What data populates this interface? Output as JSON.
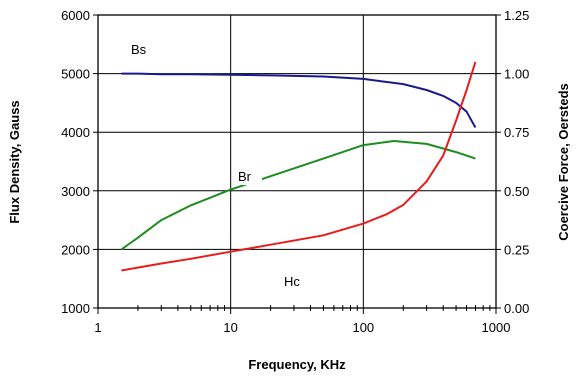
{
  "chart_data": {
    "type": "line",
    "xlabel": "Frequency, KHz",
    "ylabel": "Flux Density, Gauss",
    "y2label": "Coercive Force, Oersteds",
    "x_scale": "log",
    "xlim": [
      1,
      1000
    ],
    "ylim": [
      1000,
      6000
    ],
    "y2lim": [
      0,
      1.25
    ],
    "grid": true,
    "x_ticks": [
      1,
      10,
      100,
      1000
    ],
    "x_tick_labels": [
      "1",
      "10",
      "100",
      "1000"
    ],
    "y_ticks": [
      1000,
      2000,
      3000,
      4000,
      5000,
      6000
    ],
    "y_tick_labels": [
      "1000",
      "2000",
      "3000",
      "4000",
      "5000",
      "6000"
    ],
    "y2_ticks": [
      0,
      0.25,
      0.5,
      0.75,
      1.0,
      1.25
    ],
    "y2_tick_labels": [
      "0.00",
      "0.25",
      "0.50",
      "0.75",
      "1.00",
      "1.25"
    ],
    "series": [
      {
        "name": "Bs",
        "axis": "left",
        "color": "#1a1a8c",
        "x": [
          1.5,
          2,
          3,
          5,
          10,
          20,
          50,
          100,
          200,
          300,
          400,
          500,
          600,
          700
        ],
        "values": [
          5000,
          5000,
          4990,
          4990,
          4980,
          4970,
          4950,
          4910,
          4820,
          4720,
          4620,
          4500,
          4350,
          4080
        ]
      },
      {
        "name": "Br",
        "axis": "left",
        "color": "#1e8c1e",
        "x": [
          1.5,
          2,
          3,
          5,
          10,
          20,
          50,
          100,
          170,
          300,
          500,
          700
        ],
        "values": [
          2000,
          2200,
          2500,
          2750,
          3020,
          3250,
          3550,
          3780,
          3850,
          3800,
          3660,
          3550
        ]
      },
      {
        "name": "Hc",
        "axis": "right",
        "color": "#e81c1c",
        "x": [
          1.5,
          3,
          5,
          10,
          20,
          50,
          100,
          150,
          200,
          300,
          400,
          500,
          600,
          700
        ],
        "values": [
          0.16,
          0.19,
          0.21,
          0.24,
          0.27,
          0.31,
          0.36,
          0.4,
          0.44,
          0.54,
          0.65,
          0.8,
          0.93,
          1.05
        ]
      }
    ]
  }
}
